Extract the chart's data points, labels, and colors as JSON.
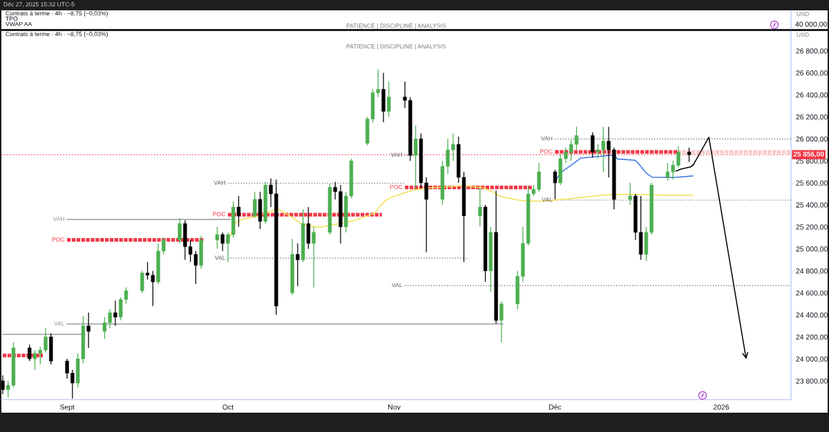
{
  "chart_data": [
    {
      "type": "other",
      "title": "Déc 27, 2025 15:32 UTC-5",
      "subtitle": "PATIENCE | DISCIPLINE | ANALYSIS",
      "ylabel": "USD",
      "annotations": [
        "Contrats à terme · 4h · −8,75 (−0,03%)",
        "TPO",
        "VWAP AA",
        "40 000,00"
      ]
    },
    {
      "type": "candlestick",
      "subtitle": "PATIENCE | DISCIPLINE | ANALYSIS",
      "ylabel": "USD",
      "annotations": [
        "Contrats à terme · 4h · −8,75 (−0,03%)"
      ],
      "x": [
        "2025-08-20",
        "2025-08-21",
        "2025-08-22",
        "2025-08-25",
        "2025-08-26",
        "2025-08-27",
        "2025-08-28",
        "2025-08-29",
        "2025-09-01",
        "2025-09-02",
        "2025-09-03",
        "2025-09-04",
        "2025-09-05",
        "2025-09-08",
        "2025-09-09",
        "2025-09-10",
        "2025-09-11",
        "2025-09-12",
        "2025-09-15",
        "2025-09-16",
        "2025-09-17",
        "2025-09-18",
        "2025-09-19",
        "2025-09-22",
        "2025-09-23",
        "2025-09-24",
        "2025-09-25",
        "2025-09-26",
        "2025-09-29",
        "2025-09-30",
        "2025-10-01",
        "2025-10-02",
        "2025-10-03",
        "2025-10-06",
        "2025-10-07",
        "2025-10-08",
        "2025-10-09",
        "2025-10-10",
        "2025-10-13",
        "2025-10-14",
        "2025-10-15",
        "2025-10-16",
        "2025-10-17",
        "2025-10-20",
        "2025-10-21",
        "2025-10-22",
        "2025-10-23",
        "2025-10-24",
        "2025-10-27",
        "2025-10-28",
        "2025-10-29",
        "2025-10-30",
        "2025-10-31",
        "2025-11-03",
        "2025-11-04",
        "2025-11-05",
        "2025-11-06",
        "2025-11-07",
        "2025-11-10",
        "2025-11-11",
        "2025-11-12",
        "2025-11-13",
        "2025-11-14",
        "2025-11-17",
        "2025-11-18",
        "2025-11-19",
        "2025-11-20",
        "2025-11-21",
        "2025-11-24",
        "2025-11-25",
        "2025-11-26",
        "2025-11-27",
        "2025-11-28",
        "2025-12-01",
        "2025-12-02",
        "2025-12-03",
        "2025-12-04",
        "2025-12-05",
        "2025-12-08",
        "2025-12-09",
        "2025-12-10",
        "2025-12-11",
        "2025-12-12",
        "2025-12-15",
        "2025-12-16",
        "2025-12-17",
        "2025-12-18",
        "2025-12-19",
        "2025-12-22",
        "2025-12-23",
        "2025-12-24",
        "2025-12-26"
      ],
      "ohlc": [
        [
          23800,
          23850,
          23680,
          23720
        ],
        [
          23720,
          23800,
          23650,
          23760
        ],
        [
          23760,
          24150,
          23740,
          24100
        ],
        [
          24100,
          24130,
          23980,
          24000
        ],
        [
          24000,
          24080,
          23900,
          24050
        ],
        [
          24050,
          24110,
          23950,
          24080
        ],
        [
          24080,
          24280,
          24060,
          24200
        ],
        [
          24200,
          24230,
          23950,
          23980
        ],
        [
          23980,
          24000,
          23820,
          23870
        ],
        [
          23870,
          23900,
          23640,
          23780
        ],
        [
          23780,
          24050,
          23740,
          24000
        ],
        [
          24000,
          24390,
          23960,
          24300
        ],
        [
          24300,
          24420,
          24100,
          24250
        ],
        [
          24250,
          24380,
          24180,
          24330
        ],
        [
          24330,
          24450,
          24280,
          24420
        ],
        [
          24420,
          24530,
          24300,
          24380
        ],
        [
          24380,
          24560,
          24350,
          24540
        ],
        [
          24540,
          24650,
          24500,
          24620
        ],
        [
          24620,
          24800,
          24600,
          24780
        ],
        [
          24780,
          24880,
          24720,
          24760
        ],
        [
          24760,
          24800,
          24480,
          24700
        ],
        [
          24700,
          25050,
          24680,
          24980
        ],
        [
          24980,
          25100,
          24950,
          25080
        ],
        [
          25080,
          25280,
          25050,
          25230
        ],
        [
          25230,
          25260,
          24900,
          25020
        ],
        [
          25020,
          25080,
          24880,
          24950
        ],
        [
          24950,
          24980,
          24680,
          24850
        ],
        [
          24850,
          25120,
          24820,
          25080
        ],
        [
          25080,
          25200,
          25000,
          25130
        ],
        [
          25130,
          25150,
          24980,
          25050
        ],
        [
          25050,
          25150,
          24880,
          25130
        ],
        [
          25130,
          25430,
          25100,
          25380
        ],
        [
          25380,
          25480,
          25200,
          25300
        ],
        [
          25300,
          25520,
          25280,
          25450
        ],
        [
          25450,
          25520,
          25180,
          25250
        ],
        [
          25250,
          25610,
          25230,
          25580
        ],
        [
          25580,
          25640,
          25380,
          25500
        ],
        [
          25500,
          25630,
          24400,
          24480
        ],
        [
          24600,
          25090,
          24580,
          24950
        ],
        [
          24950,
          25050,
          24660,
          24900
        ],
        [
          24900,
          25360,
          24880,
          25230
        ],
        [
          25230,
          25380,
          25000,
          25050
        ],
        [
          25050,
          25200,
          24650,
          25150
        ],
        [
          25150,
          25590,
          25130,
          25560
        ],
        [
          25560,
          25610,
          25450,
          25520
        ],
        [
          25520,
          25580,
          25050,
          25200
        ],
        [
          25200,
          25520,
          25150,
          25480
        ],
        [
          25480,
          25820,
          25460,
          25800
        ],
        [
          25960,
          26200,
          25940,
          26180
        ],
        [
          26180,
          26450,
          26150,
          26420
        ],
        [
          26420,
          26630,
          26380,
          26450
        ],
        [
          26450,
          26600,
          26150,
          26250
        ],
        [
          26250,
          26520,
          26200,
          26380
        ],
        [
          26380,
          26520,
          26280,
          26350
        ],
        [
          26350,
          26380,
          25800,
          25850
        ],
        [
          25850,
          26120,
          25540,
          26000
        ],
        [
          26000,
          26050,
          25550,
          25600
        ],
        [
          25600,
          25650,
          24970,
          25450
        ],
        [
          25450,
          25800,
          25400,
          25750
        ],
        [
          25750,
          26000,
          25680,
          25900
        ],
        [
          25900,
          26050,
          25800,
          25950
        ],
        [
          25950,
          26020,
          25600,
          25650
        ],
        [
          25650,
          25700,
          24880,
          25300
        ],
        [
          25300,
          25550,
          25200,
          25380
        ],
        [
          25380,
          25400,
          24700,
          24800
        ],
        [
          24800,
          25200,
          24610,
          25150
        ],
        [
          25150,
          25530,
          24320,
          24350
        ],
        [
          24350,
          24520,
          24150,
          24500
        ],
        [
          24500,
          24800,
          24450,
          24750
        ],
        [
          24750,
          25200,
          24700,
          25050
        ],
        [
          25050,
          25570,
          25030,
          25500
        ],
        [
          25500,
          25580,
          25480,
          25540
        ],
        [
          25540,
          25780,
          25520,
          25700
        ],
        [
          25700,
          25720,
          25450,
          25600
        ],
        [
          25600,
          25860,
          25580,
          25820
        ],
        [
          25820,
          25920,
          25780,
          25880
        ],
        [
          25880,
          25990,
          25800,
          25950
        ],
        [
          25950,
          26110,
          25900,
          26030
        ],
        [
          26030,
          26060,
          25830,
          25880
        ],
        [
          25880,
          25950,
          25820,
          25900
        ],
        [
          25900,
          26110,
          25700,
          25980
        ],
        [
          25980,
          26110,
          25650,
          25900
        ],
        [
          25900,
          25920,
          25360,
          25450
        ],
        [
          25450,
          25600,
          25400,
          25480
        ],
        [
          25480,
          25500,
          25080,
          25150
        ],
        [
          25150,
          25480,
          24900,
          24950
        ],
        [
          24950,
          25200,
          24890,
          25150
        ],
        [
          25150,
          25600,
          25130,
          25580
        ],
        [
          25650,
          25780,
          25620,
          25700
        ],
        [
          25700,
          25800,
          25630,
          25760
        ],
        [
          25760,
          25930,
          25740,
          25880
        ],
        [
          25880,
          25920,
          25790,
          25856
        ]
      ],
      "colors": [
        "#000000",
        "#4caf50",
        "#4caf50",
        "#000000",
        "#4caf50",
        "#4caf50",
        "#4caf50",
        "#000000",
        "#000000",
        "#000000",
        "#4caf50",
        "#4caf50",
        "#000000",
        "#4caf50",
        "#4caf50",
        "#000000",
        "#4caf50",
        "#4caf50",
        "#4caf50",
        "#000000",
        "#000000",
        "#4caf50",
        "#4caf50",
        "#4caf50",
        "#000000",
        "#000000",
        "#000000",
        "#4caf50",
        "#4caf50",
        "#000000",
        "#4caf50",
        "#4caf50",
        "#000000",
        "#4caf50",
        "#000000",
        "#4caf50",
        "#000000",
        "#000000",
        "#4caf50",
        "#000000",
        "#4caf50",
        "#000000",
        "#4caf50",
        "#4caf50",
        "#000000",
        "#000000",
        "#4caf50",
        "#4caf50",
        "#4caf50",
        "#4caf50",
        "#4caf50",
        "#000000",
        "#4caf50",
        "#000000",
        "#000000",
        "#4caf50",
        "#000000",
        "#000000",
        "#4caf50",
        "#4caf50",
        "#4caf50",
        "#000000",
        "#000000",
        "#4caf50",
        "#000000",
        "#4caf50",
        "#000000",
        "#4caf50",
        "#4caf50",
        "#4caf50",
        "#4caf50",
        "#4caf50",
        "#4caf50",
        "#000000",
        "#4caf50",
        "#4caf50",
        "#4caf50",
        "#4caf50",
        "#000000",
        "#4caf50",
        "#4caf50",
        "#000000",
        "#000000",
        "#4caf50",
        "#000000",
        "#000000",
        "#4caf50",
        "#4caf50",
        "#4caf50",
        "#4caf50",
        "#4caf50",
        "#000000"
      ],
      "series": [
        {
          "type": "line",
          "color": "#9598a1",
          "line_style": "solid",
          "x": [
            "2025-08-20",
            "2025-09-04T08:00"
          ],
          "values": [
            24223,
            24223
          ]
        },
        {
          "type": "line",
          "color": "#f23645",
          "line_style": "dashed",
          "x": [
            "2025-08-20",
            "2025-08-27T12:00"
          ],
          "values": [
            24031,
            24031
          ]
        },
        {
          "type": "line",
          "name": "VAH",
          "color": "#9598a1",
          "line_style": "solid",
          "x": [
            "2025-09-01",
            "2025-10-01T10:00"
          ],
          "values": [
            25267,
            25267
          ]
        },
        {
          "type": "line",
          "name": "POC",
          "color": "#f23645",
          "line_style": "dashed",
          "x": [
            "2025-09-01",
            "2025-09-26T10:00"
          ],
          "values": [
            25081,
            25081
          ]
        },
        {
          "type": "line",
          "name": "VAL",
          "color": "#9598a1",
          "line_style": "solid",
          "x": [
            "2025-09-01",
            "2025-11-21T07:00"
          ],
          "values": [
            24317,
            24317
          ]
        },
        {
          "type": "line",
          "name": "VAH",
          "color": "#5d606b",
          "line_style": "dotted",
          "x": [
            "2025-10-01",
            "2025-11-03"
          ],
          "values": [
            25597,
            25597
          ]
        },
        {
          "type": "line",
          "name": "POC",
          "color": "#f23645",
          "line_style": "dashed",
          "x": [
            "2025-10-01",
            "2025-10-29T17:00"
          ],
          "values": [
            25311,
            25311
          ]
        },
        {
          "type": "line",
          "name": "VAL",
          "color": "#5d606b",
          "line_style": "dotted",
          "x": [
            "2025-10-01",
            "2025-11-14T21:00"
          ],
          "values": [
            24915,
            24915
          ]
        },
        {
          "type": "line",
          "name": "VAH",
          "color": "#5d606b",
          "line_style": "dotted",
          "x": [
            "2025-11-03",
            "2025-11-05"
          ],
          "values": [
            25850,
            25850
          ]
        },
        {
          "type": "line",
          "name": "POC",
          "color": "#f23645",
          "line_style": "dashed",
          "x": [
            "2025-11-03",
            "2025-11-26T17:00"
          ],
          "values": [
            25558,
            25558
          ]
        },
        {
          "type": "line",
          "name": "VAL",
          "color": "#5d606b",
          "line_style": "dotted",
          "x": [
            "2025-11-03",
            "2026-01-14"
          ],
          "values": [
            24666,
            24666
          ]
        },
        {
          "type": "line",
          "name": "VAH",
          "color": "#5d606b",
          "line_style": "dotted",
          "x": [
            "2025-12-01",
            "2026-01-14"
          ],
          "values": [
            25999,
            25999
          ]
        },
        {
          "type": "line",
          "name": "POC",
          "color": "#f23645",
          "line_style": "dashed",
          "x": [
            "2025-12-01",
            "2025-12-23T20:00"
          ],
          "values": [
            25881,
            25881
          ]
        },
        {
          "type": "line",
          "color": "#f8c9cc",
          "line_style": "dashed",
          "x": [
            "2025-12-23T20:00",
            "2026-01-14"
          ],
          "values": [
            25881,
            25881
          ]
        },
        {
          "type": "line",
          "name": "VAL",
          "color": "#5d606b",
          "line_style": "dotted",
          "x": [
            "2025-12-01",
            "2026-01-14"
          ],
          "values": [
            25443,
            25443
          ]
        },
        {
          "type": "line",
          "color": "#f5e050",
          "line_style": "solid",
          "x": [
            "2025-10-01T10:00",
            "2025-10-02T08:00",
            "2025-10-03T14:00",
            "2025-10-06T20:00",
            "2025-10-08T10:00",
            "2025-10-10T07:00",
            "2025-10-13T07:00",
            "2025-10-14T19:00",
            "2025-10-16T02:00",
            "2025-10-17T20:00",
            "2025-10-22T12:00",
            "2025-10-24T10:00",
            "2025-10-28T07:00",
            "2025-10-30T05:00",
            "2025-10-31T12:00",
            "2025-11-04T10:00",
            "2025-11-07T05:00",
            "2025-11-12T07:00",
            "2025-11-13T20:00",
            "2025-11-17T19:00",
            "2025-11-19T17:00",
            "2025-11-20T20:00",
            "2025-11-24T05:00",
            "2025-11-26T02:00",
            "2025-11-28T12:00",
            "2025-12-03T10:00",
            "2025-12-08T12:00",
            "2025-12-11T17:00",
            "2025-12-16T19:00",
            "2025-12-22T00:00",
            "2025-12-26T16:00"
          ],
          "values": [
            25113,
            25234,
            25267,
            25301,
            25332,
            25364,
            25278,
            25223,
            25213,
            25195,
            25234,
            25257,
            25322,
            25433,
            25470,
            25533,
            25553,
            25568,
            25575,
            25553,
            25510,
            25476,
            25443,
            25433,
            25433,
            25454,
            25480,
            25495,
            25495,
            25487,
            25487
          ]
        },
        {
          "type": "line",
          "color": "#4178e6",
          "line_style": "solid",
          "x": [
            "2025-12-01T00:00",
            "2025-12-01T05:00",
            "2025-12-02T03:00",
            "2025-12-03T10:00",
            "2025-12-04T15:00",
            "2025-12-05T20:00",
            "2025-12-09T04:00",
            "2025-12-11T00:00",
            "2025-12-12T00:00",
            "2025-12-12T16:00",
            "2025-12-15T22:00",
            "2025-12-16T19:00",
            "2025-12-18T02:00",
            "2025-12-19T02:00",
            "2025-12-22T14:00",
            "2025-12-23T21:00",
            "2025-12-26T16:00"
          ],
          "values": [
            25590,
            25630,
            25696,
            25740,
            25782,
            25826,
            25840,
            25850,
            25850,
            25817,
            25806,
            25762,
            25685,
            25652,
            25648,
            25652,
            25663
          ]
        },
        {
          "type": "line",
          "color": "#000000",
          "line_style": "solid",
          "x": [
            "2025-12-23T14:00",
            "2025-12-24T12:00",
            "2025-12-26T08:00",
            "2025-12-26T16:00"
          ],
          "values": [
            25708,
            25725,
            25745,
            25762
          ]
        }
      ],
      "ref_lines": [
        {
          "axis": "y",
          "value": 25856,
          "label": "25 856,00",
          "color": "#f23645",
          "line_style": "dotted"
        }
      ],
      "xlim": [
        "2025-08-19T18:00",
        "2026-01-14"
      ],
      "xticks": [
        {
          "value": "2025-09-01",
          "label": "Sept"
        },
        {
          "value": "2025-10-01",
          "label": "Oct"
        },
        {
          "value": "2025-11-01",
          "label": "Nov"
        },
        {
          "value": "2025-12-01",
          "label": "Déc"
        },
        {
          "value": "2026-01-01",
          "label": "2026"
        }
      ],
      "ylim": [
        23630,
        26980
      ],
      "yticks": [
        {
          "value": 23800,
          "label": "23 800,00"
        },
        {
          "value": 24000,
          "label": "24 000,00"
        },
        {
          "value": 24200,
          "label": "24 200,00"
        },
        {
          "value": 24400,
          "label": "24 400,00"
        },
        {
          "value": 24600,
          "label": "24 600,00"
        },
        {
          "value": 24800,
          "label": "24 800,00"
        },
        {
          "value": 25000,
          "label": "25 000,00"
        },
        {
          "value": 25200,
          "label": "25 200,00"
        },
        {
          "value": 25400,
          "label": "25 400,00"
        },
        {
          "value": 25600,
          "label": "25 600,00"
        },
        {
          "value": 25800,
          "label": "25 800,00"
        },
        {
          "value": 26000,
          "label": "26 000,00"
        },
        {
          "value": 26200,
          "label": "26 200,00"
        },
        {
          "value": 26400,
          "label": "26 400,00"
        },
        {
          "value": 26600,
          "label": "26 600,00"
        },
        {
          "value": 26800,
          "label": "26 800,00"
        }
      ]
    }
  ]
}
